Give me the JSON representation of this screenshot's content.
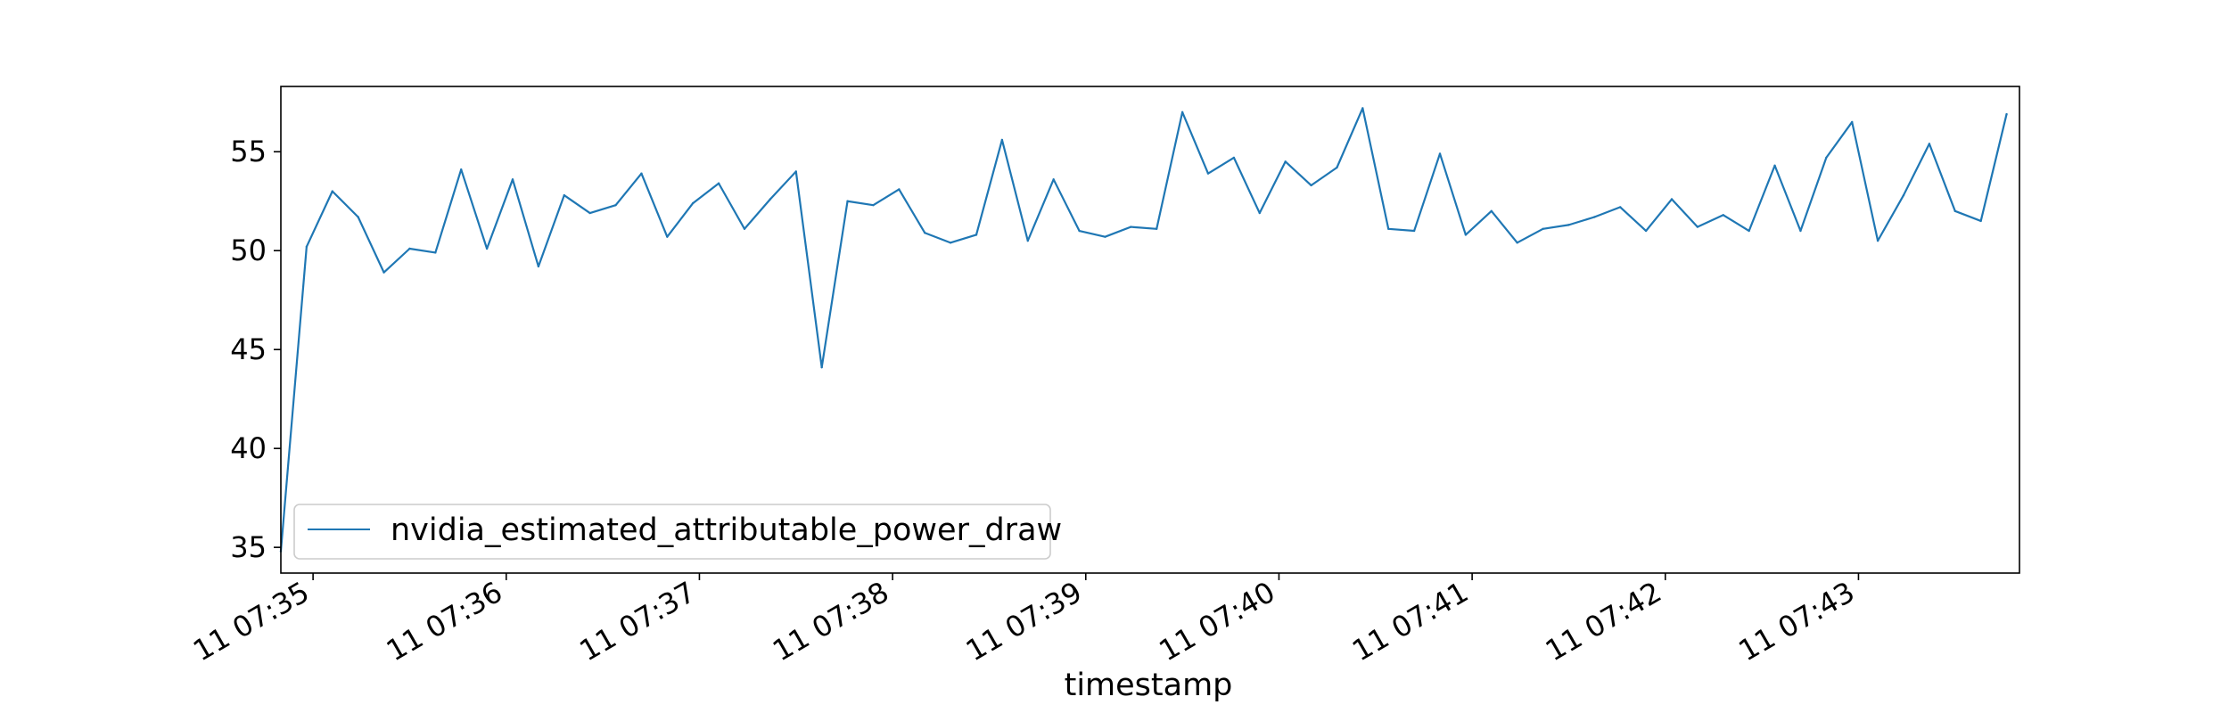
{
  "chart_data": {
    "type": "line",
    "title": "",
    "xlabel": "timestamp",
    "ylabel": "",
    "grid": false,
    "legend_position": "lower-left",
    "x_tick_labels": [
      "11 07:35",
      "11 07:36",
      "11 07:37",
      "11 07:38",
      "11 07:39",
      "11 07:40",
      "11 07:41",
      "11 07:42",
      "11 07:43"
    ],
    "y_ticks": [
      35,
      40,
      45,
      50,
      55
    ],
    "ylim": [
      33.7,
      58.3
    ],
    "xlim": [
      "07:34:50",
      "07:43:50"
    ],
    "series": [
      {
        "name": "nvidia_estimated_attributable_power_draw",
        "color": "#1f77b4",
        "x": [
          "07:34:50",
          "07:34:58",
          "07:35:06",
          "07:35:14",
          "07:35:22",
          "07:35:30",
          "07:35:38",
          "07:35:46",
          "07:35:54",
          "07:36:02",
          "07:36:10",
          "07:36:18",
          "07:36:26",
          "07:36:34",
          "07:36:42",
          "07:36:50",
          "07:36:58",
          "07:37:06",
          "07:37:14",
          "07:37:22",
          "07:37:30",
          "07:37:38",
          "07:37:46",
          "07:37:54",
          "07:38:02",
          "07:38:10",
          "07:38:18",
          "07:38:26",
          "07:38:34",
          "07:38:42",
          "07:38:50",
          "07:38:58",
          "07:39:06",
          "07:39:14",
          "07:39:22",
          "07:39:30",
          "07:39:38",
          "07:39:46",
          "07:39:54",
          "07:40:02",
          "07:40:10",
          "07:40:18",
          "07:40:26",
          "07:40:34",
          "07:40:42",
          "07:40:50",
          "07:40:58",
          "07:41:06",
          "07:41:14",
          "07:41:22",
          "07:41:30",
          "07:41:38",
          "07:41:46",
          "07:41:54",
          "07:42:02",
          "07:42:10",
          "07:42:18",
          "07:42:26",
          "07:42:34",
          "07:42:42",
          "07:42:50",
          "07:42:58",
          "07:43:06",
          "07:43:14",
          "07:43:22",
          "07:43:30",
          "07:43:38",
          "07:43:46"
        ],
        "y": [
          34.8,
          50.2,
          53.0,
          51.7,
          48.9,
          50.1,
          49.9,
          54.1,
          50.1,
          53.6,
          49.2,
          52.8,
          51.9,
          52.3,
          53.9,
          50.7,
          52.4,
          53.4,
          51.1,
          52.6,
          54.0,
          44.1,
          52.5,
          52.3,
          53.1,
          50.9,
          50.4,
          50.8,
          55.6,
          50.5,
          53.6,
          51.0,
          50.7,
          51.2,
          51.1,
          57.0,
          53.9,
          54.7,
          51.9,
          54.5,
          53.3,
          54.2,
          57.2,
          51.1,
          51.0,
          54.9,
          50.8,
          52.0,
          50.4,
          51.1,
          51.3,
          51.7,
          52.2,
          51.0,
          52.6,
          51.2,
          51.8,
          51.0,
          54.3,
          51.0,
          54.7,
          56.5,
          50.5,
          52.8,
          55.4,
          52.0,
          51.5,
          56.9
        ]
      }
    ]
  }
}
